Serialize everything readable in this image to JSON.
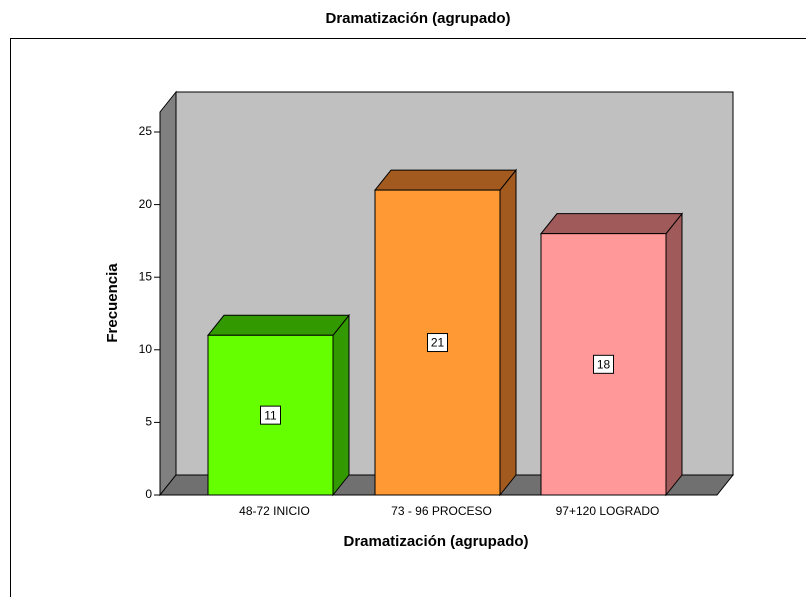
{
  "chart_data": {
    "type": "bar3d",
    "title": "Dramatización  (agrupado)",
    "x_label": "Dramatización  (agrupado)",
    "y_label": "Frecuencia",
    "categories": [
      "48-72 INICIO",
      "73 - 96 PROCESO",
      "97+120 LOGRADO"
    ],
    "values": [
      11,
      21,
      18
    ],
    "colors": [
      "#66ff00",
      "#ff9933",
      "#ff9999"
    ],
    "side_colors": [
      "#339900",
      "#a35a1f",
      "#a05a5a"
    ],
    "ylim": [
      0,
      25
    ],
    "yticks": [
      0,
      5,
      10,
      15,
      20,
      25
    ]
  }
}
